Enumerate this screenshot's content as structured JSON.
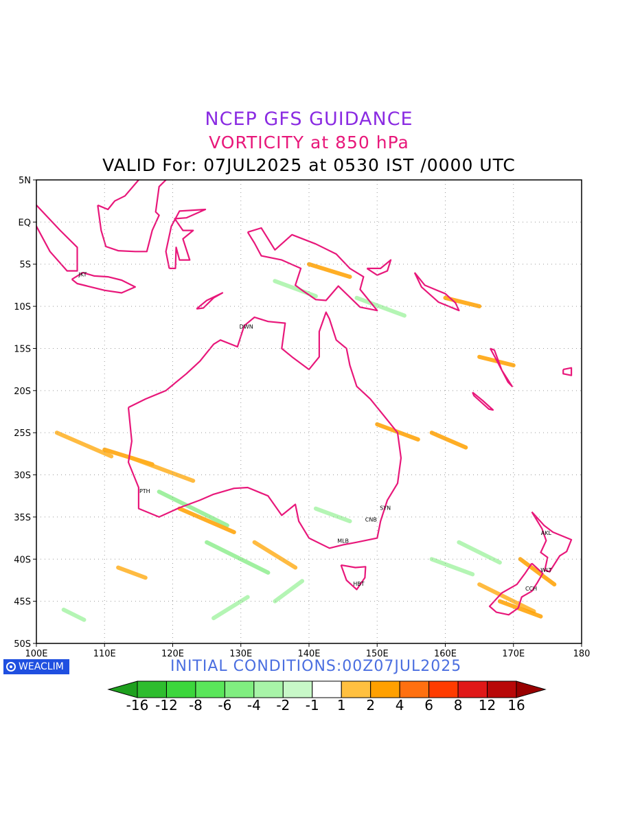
{
  "header": {
    "title": "NCEP GFS GUIDANCE",
    "subtitle": "VORTICITY at 850 hPa",
    "valid": "VALID For: 07JUL2025 at 0530 IST /0000 UTC",
    "title_color": "#8a2be2",
    "subtitle_color": "#e8177a"
  },
  "map": {
    "lon_range": [
      100,
      180
    ],
    "lat_range": [
      -50,
      5
    ],
    "lon_ticks": [
      "100E",
      "110E",
      "120E",
      "130E",
      "140E",
      "150E",
      "160E",
      "170E",
      "180"
    ],
    "lat_ticks": [
      "5N",
      "EQ",
      "5S",
      "10S",
      "15S",
      "20S",
      "25S",
      "30S",
      "35S",
      "40S",
      "45S",
      "50S"
    ],
    "coast_color": "#e8177a",
    "cities": [
      {
        "code": "JKT",
        "lon": 106.8,
        "lat": -6.2
      },
      {
        "code": "DWN",
        "lon": 130.8,
        "lat": -12.4
      },
      {
        "code": "PTH",
        "lon": 115.9,
        "lat": -31.9
      },
      {
        "code": "SYN",
        "lon": 151.2,
        "lat": -33.9
      },
      {
        "code": "CNB",
        "lon": 149.1,
        "lat": -35.3
      },
      {
        "code": "MLB",
        "lon": 145.0,
        "lat": -37.8
      },
      {
        "code": "HBT",
        "lon": 147.3,
        "lat": -42.9
      },
      {
        "code": "AKL",
        "lon": 174.8,
        "lat": -36.9
      },
      {
        "code": "WLT",
        "lon": 174.8,
        "lat": -41.3
      },
      {
        "code": "CCH",
        "lon": 172.6,
        "lat": -43.5
      }
    ]
  },
  "footer": {
    "logo_text": "WEACLIM",
    "initial_conditions": "INITIAL CONDITIONS:00Z07JUL2025",
    "init_color": "#4a6ee0"
  },
  "colorbar": {
    "labels": [
      "-16",
      "-12",
      "-8",
      "-6",
      "-4",
      "-2",
      "-1",
      "1",
      "2",
      "4",
      "6",
      "8",
      "12",
      "16"
    ],
    "colors": [
      "#1ea01e",
      "#2ebd2e",
      "#3cd63c",
      "#5ae65a",
      "#80ee80",
      "#a8f4a8",
      "#c8f8c8",
      "#ffffff",
      "#ffc040",
      "#ffa000",
      "#ff7010",
      "#ff3c00",
      "#e01818",
      "#b80808",
      "#980000"
    ]
  }
}
